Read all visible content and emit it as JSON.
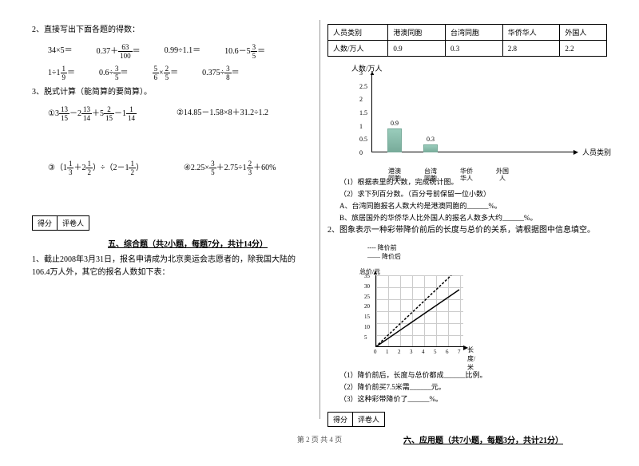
{
  "left": {
    "q2": "2、直接写出下面各题的得数：",
    "eq_rows": [
      [
        "34×5＝",
        "0.37＋ 63/100 ＝",
        "0.99÷1.1＝",
        "10.6－5 3/5 ＝"
      ],
      [
        "1÷1 1/9 ＝",
        "0.6÷ 3/5 ＝",
        "5/6 × 2/5 ＝",
        "0.375÷ 3/8 ＝"
      ]
    ],
    "q3": "3、脱式计算（能简算的要简算）。",
    "q3a": "①3 13/15 －2 13/14 ＋5 2/15 －1 1/14",
    "q3b": "②14.85－1.58×8＋31.2÷1.2",
    "q3c": "③（1 1/3 ＋2 1/2）÷（2－1 1/2）",
    "q3d": "④2.25× 3/5 ＋2.75÷1 2/3 ＋60%",
    "score1": "得分",
    "score2": "评卷人",
    "section5": "五、综合题（共2小题，每题7分，共计14分）",
    "q5_1": "1、截止2008年3月31日，报名申请成为北京奥运会志愿者的，除我国大陆的106.4万人外，其它的报名人数如下表："
  },
  "right": {
    "table": {
      "headers": [
        "人员类别",
        "港澳同胞",
        "台湾同胞",
        "华侨华人",
        "外国人"
      ],
      "row_label": "人数/万人",
      "values": [
        "0.9",
        "0.3",
        "2.8",
        "2.2"
      ]
    },
    "chart": {
      "y_label": "人数/万人",
      "x_label": "人员类别",
      "y_ticks": [
        "3",
        "2.5",
        "2",
        "1.5",
        "1",
        "0.5",
        "0"
      ],
      "bars": [
        {
          "label": "港澳同胞",
          "value": 0.9,
          "text": "0.9"
        },
        {
          "label": "台湾同胞",
          "value": 0.3,
          "text": "0.3"
        },
        {
          "label": "华侨华人",
          "value": null,
          "text": ""
        },
        {
          "label": "外国人",
          "value": null,
          "text": ""
        }
      ],
      "max": 3
    },
    "q1_1": "（1）根据表里的人数，完成统计图。",
    "q1_2": "（2）求下列百分数。（百分号前保留一位小数）",
    "q1_2a": "A、台湾同胞报名人数大约是港澳同胞的______%。",
    "q1_2b": "B、旅居国外的华侨华人比外国人的报名人数多大约______%。",
    "q2": "2、图象表示一种彩带降价前后的长度与总价的关系，请根据图中信息填空。",
    "legend1": "---- 降价前",
    "legend2": "—— 降价后",
    "grid": {
      "y_label": "总价/元",
      "x_label": "长度/米",
      "y_ticks": [
        "35",
        "30",
        "25",
        "20",
        "15",
        "10",
        "5"
      ],
      "x_ticks": [
        "0",
        "1",
        "2",
        "3",
        "4",
        "5",
        "6",
        "7"
      ]
    },
    "q2_1": "（1）降价前后，长度与总价都成______比例。",
    "q2_2": "（2）降价前买7.5米需______元。",
    "q2_3": "（3）这种彩带降价了______%。",
    "score1": "得分",
    "score2": "评卷人",
    "section6": "六、应用题（共7小题，每题3分，共计21分）"
  },
  "footer": "第 2 页 共 4 页"
}
